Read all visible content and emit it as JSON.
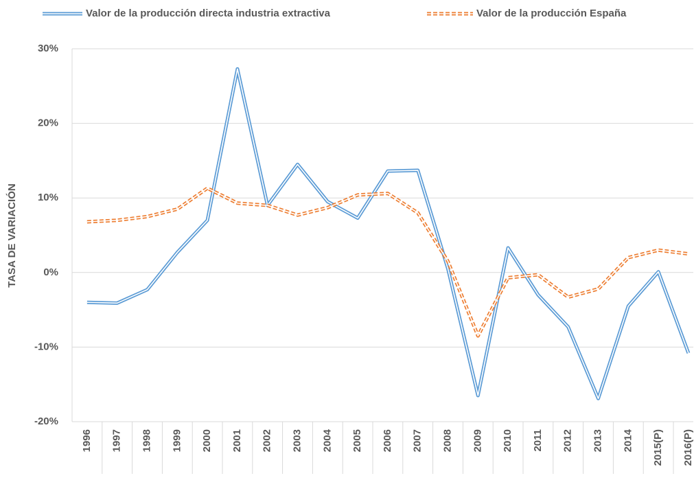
{
  "chart_data": {
    "type": "line",
    "y_label": "TASA DE VARIACIÓN",
    "categories": [
      "1996",
      "1997",
      "1998",
      "1999",
      "2000",
      "2001",
      "2002",
      "2003",
      "2004",
      "2005",
      "2006",
      "2007",
      "2008",
      "2009",
      "2010",
      "2011",
      "2012",
      "2013",
      "2014",
      "2015(P)",
      "2016(P)"
    ],
    "series": [
      {
        "name": "Valor de la producción directa industria extractiva",
        "color": "#5b9bd5",
        "values": [
          -4,
          -4.1,
          -2.3,
          2.7,
          7,
          27.3,
          9,
          14.5,
          9.5,
          7.3,
          13.6,
          13.7,
          0.5,
          -16.5,
          3.3,
          -3,
          -7.3,
          -16.9,
          -4.5,
          0.1,
          -10.8
        ]
      },
      {
        "name": "Valor de la producción España",
        "color": "#ed7d31",
        "dashed": true,
        "values": [
          6.8,
          7,
          7.5,
          8.5,
          11.3,
          9.3,
          9,
          7.7,
          8.7,
          10.4,
          10.6,
          8,
          1.5,
          -8.5,
          -0.7,
          -0.3,
          -3.3,
          -2.2,
          2,
          3,
          2.5
        ]
      }
    ],
    "ylim": [
      -20,
      30
    ],
    "yticks": [
      {
        "value": -20,
        "label": "-20%"
      },
      {
        "value": -10,
        "label": "-10%"
      },
      {
        "value": 0,
        "label": "0%"
      },
      {
        "value": 10,
        "label": "10%"
      },
      {
        "value": 20,
        "label": "20%"
      },
      {
        "value": 30,
        "label": "30%"
      }
    ],
    "grid": true,
    "legend": "top"
  }
}
